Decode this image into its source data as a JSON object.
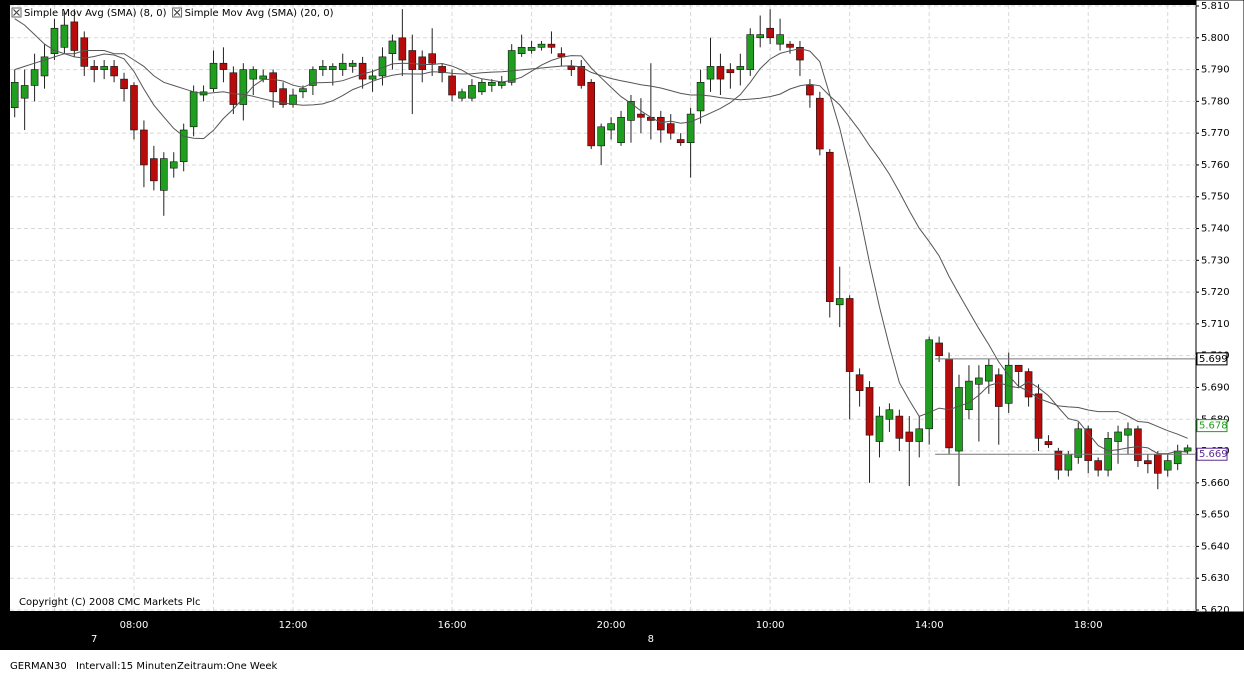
{
  "chart_data": {
    "type": "candlestick",
    "copyright": "Copyright (C) 2008 CMC Markets Plc",
    "footer": {
      "symbol": "GERMAN30",
      "interval": "Intervall:15 Minuten",
      "period": "Zeitraum:One Week"
    },
    "categories": [
      null,
      null,
      null,
      null,
      null,
      null,
      null,
      null,
      null,
      null,
      null,
      null,
      "08:00",
      null,
      null,
      null,
      null,
      null,
      null,
      null,
      null,
      null,
      null,
      null,
      null,
      null,
      null,
      null,
      "12:00",
      null,
      null,
      null,
      null,
      null,
      null,
      null,
      null,
      null,
      null,
      null,
      null,
      null,
      null,
      null,
      "16:00",
      null,
      null,
      null,
      null,
      null,
      null,
      null,
      null,
      null,
      null,
      null,
      null,
      null,
      null,
      null,
      "20:00",
      null,
      null,
      null,
      null,
      null,
      null,
      null,
      null,
      null,
      null,
      null,
      null,
      null,
      null,
      null,
      "10:00",
      null,
      null,
      null,
      null,
      null,
      null,
      null,
      null,
      null,
      null,
      null,
      null,
      null,
      null,
      null,
      "14:00",
      null,
      null,
      null,
      null,
      null,
      null,
      null,
      null,
      null,
      null,
      null,
      null,
      null,
      null,
      null,
      "18:00",
      null,
      null,
      null,
      null,
      null,
      null,
      null,
      null,
      null,
      null
    ],
    "day_categories": [
      null,
      null,
      null,
      null,
      null,
      null,
      null,
      null,
      "7",
      null,
      null,
      null,
      null,
      null,
      null,
      null,
      null,
      null,
      null,
      null,
      null,
      null,
      null,
      null,
      null,
      null,
      null,
      null,
      null,
      null,
      null,
      null,
      null,
      null,
      null,
      null,
      null,
      null,
      null,
      null,
      null,
      null,
      null,
      null,
      null,
      null,
      null,
      null,
      null,
      null,
      null,
      null,
      null,
      null,
      null,
      null,
      null,
      null,
      null,
      null,
      null,
      null,
      null,
      null,
      "8",
      null,
      null,
      null,
      null,
      null,
      null,
      null,
      null,
      null,
      null,
      null,
      null,
      null,
      null,
      null,
      null,
      null,
      null,
      null,
      null,
      null,
      null,
      null,
      null,
      null,
      null,
      null,
      null,
      null,
      null,
      null,
      null,
      null,
      null,
      null,
      null,
      null,
      null,
      null,
      null,
      null,
      null,
      null,
      null,
      null,
      null,
      null,
      null,
      null,
      null,
      null,
      null,
      null,
      null
    ],
    "open": [
      5778,
      5781,
      5785,
      5788,
      5795,
      5797,
      5805,
      5800,
      5791,
      5790,
      5791,
      5787,
      5785,
      5771,
      5762,
      5752,
      5759,
      5761,
      5772,
      5782,
      5784,
      5792,
      5789,
      5779,
      5787,
      5787,
      5789,
      5784,
      5779,
      5783,
      5785,
      5790,
      5790,
      5790,
      5791,
      5792,
      5787,
      5788,
      5795,
      5800,
      5796,
      5794,
      5795,
      5791,
      5788,
      5781,
      5781,
      5783,
      5785,
      5785,
      5786,
      5795,
      5796,
      5797,
      5798,
      5795,
      5791,
      5791,
      5786,
      5766,
      5771,
      5767,
      5774,
      5776,
      5775,
      5775,
      5773,
      5768,
      5767,
      5777,
      5787,
      5791,
      5790,
      5790,
      5790,
      5800,
      5803,
      5798,
      5798,
      5797,
      5785,
      5781,
      5764,
      5716,
      5718,
      5694,
      5690,
      5673,
      5680,
      5681,
      5676,
      5673,
      5677,
      5704,
      5699,
      5670,
      5683,
      5691,
      5692,
      5694,
      5685,
      5697,
      5695,
      5688,
      5673,
      5670,
      5664,
      5668,
      5677,
      5667,
      5664,
      5673,
      5675,
      5677,
      5667,
      5669,
      5664,
      5666,
      5670
    ],
    "high": [
      5790,
      5790,
      5795,
      5798,
      5806,
      5808,
      5809,
      5802,
      5793,
      5793,
      5793,
      5789,
      5786,
      5774,
      5766,
      5764,
      5764,
      5773,
      5785,
      5785,
      5796,
      5797,
      5791,
      5792,
      5791,
      5790,
      5790,
      5786,
      5784,
      5785,
      5791,
      5793,
      5792,
      5795,
      5793,
      5794,
      5790,
      5797,
      5801,
      5809,
      5801,
      5796,
      5803,
      5792,
      5790,
      5784,
      5787,
      5787,
      5787,
      5788,
      5798,
      5801,
      5799,
      5799,
      5802,
      5797,
      5793,
      5793,
      5787,
      5773,
      5775,
      5777,
      5782,
      5781,
      5792,
      5777,
      5776,
      5770,
      5778,
      5790,
      5800,
      5795,
      5792,
      5795,
      5803,
      5807,
      5809,
      5806,
      5799,
      5799,
      5787,
      5783,
      5765,
      5728,
      5719,
      5696,
      5692,
      5684,
      5685,
      5683,
      5681,
      5681,
      5706,
      5706,
      5701,
      5694,
      5697,
      5697,
      5699,
      5696,
      5701,
      5697,
      5696,
      5691,
      5675,
      5671,
      5670,
      5679,
      5678,
      5668,
      5676,
      5678,
      5679,
      5678,
      5669,
      5670,
      5669,
      5672,
      5672
    ],
    "low": [
      5775,
      5771,
      5780,
      5784,
      5793,
      5795,
      5794,
      5788,
      5786,
      5787,
      5786,
      5780,
      5768,
      5753,
      5752,
      5744,
      5756,
      5758,
      5769,
      5780,
      5783,
      5786,
      5776,
      5774,
      5782,
      5786,
      5778,
      5778,
      5778,
      5781,
      5782,
      5788,
      5785,
      5788,
      5789,
      5784,
      5783,
      5785,
      5790,
      5788,
      5776,
      5786,
      5788,
      5786,
      5780,
      5780,
      5780,
      5782,
      5783,
      5784,
      5785,
      5794,
      5795,
      5796,
      5795,
      5791,
      5788,
      5784,
      5765,
      5760,
      5768,
      5766,
      5767,
      5770,
      5768,
      5767,
      5768,
      5766,
      5756,
      5773,
      5783,
      5782,
      5784,
      5785,
      5788,
      5797,
      5798,
      5796,
      5795,
      5788,
      5778,
      5763,
      5712,
      5709,
      5680,
      5684,
      5660,
      5668,
      5676,
      5670,
      5659,
      5668,
      5672,
      5698,
      5669,
      5659,
      5680,
      5673,
      5688,
      5672,
      5682,
      5690,
      5684,
      5670,
      5671,
      5661,
      5662,
      5666,
      5663,
      5662,
      5662,
      5666,
      5669,
      5665,
      5663,
      5658,
      5662,
      5664,
      5669
    ],
    "close": [
      5786,
      5785,
      5790,
      5794,
      5803,
      5804,
      5796,
      5791,
      5790,
      5791,
      5788,
      5784,
      5771,
      5760,
      5755,
      5762,
      5761,
      5771,
      5783,
      5783,
      5792,
      5790,
      5779,
      5790,
      5790,
      5788,
      5783,
      5779,
      5782,
      5784,
      5790,
      5791,
      5791,
      5792,
      5792,
      5787,
      5788,
      5794,
      5799,
      5793,
      5790,
      5790,
      5792,
      5789,
      5782,
      5783,
      5785,
      5786,
      5786,
      5786,
      5796,
      5797,
      5797,
      5798,
      5797,
      5794,
      5790,
      5785,
      5766,
      5772,
      5773,
      5775,
      5780,
      5775,
      5774,
      5771,
      5770,
      5767,
      5776,
      5786,
      5791,
      5787,
      5789,
      5791,
      5801,
      5801,
      5800,
      5801,
      5797,
      5793,
      5782,
      5765,
      5717,
      5718,
      5695,
      5689,
      5675,
      5681,
      5683,
      5674,
      5673,
      5677,
      5705,
      5700,
      5671,
      5690,
      5692,
      5693,
      5697,
      5684,
      5697,
      5695,
      5687,
      5674,
      5672,
      5664,
      5669,
      5677,
      5667,
      5664,
      5674,
      5676,
      5677,
      5667,
      5666,
      5663,
      5667,
      5670,
      5671
    ],
    "up_color": "#1f9e1f",
    "down_color": "#b80c0c",
    "series": [
      {
        "name": "Simple Mov Avg (SMA) (8, 0)",
        "color": "#555555",
        "values": [
          5806,
          5804,
          5801,
          5798,
          5796,
          5795,
          5794,
          5793.6,
          5794.1,
          5794.9,
          5794.6,
          5793.4,
          5789.4,
          5783.9,
          5778.8,
          5775.1,
          5771.5,
          5769,
          5768.4,
          5768.3,
          5770.9,
          5774.6,
          5777.6,
          5781.1,
          5784.8,
          5786.9,
          5786.9,
          5786.4,
          5785.1,
          5784.4,
          5785.8,
          5785.9,
          5786,
          5786.5,
          5787.6,
          5788.6,
          5789.4,
          5790.6,
          5791.8,
          5792,
          5791.9,
          5791.6,
          5791.6,
          5791.9,
          5791.1,
          5789.8,
          5788,
          5787.1,
          5786.6,
          5786.1,
          5786.6,
          5787.6,
          5789.5,
          5791.4,
          5792.9,
          5793.9,
          5794.4,
          5794.3,
          5790.5,
          5787.4,
          5784.4,
          5781.5,
          5779.4,
          5777,
          5775,
          5773.3,
          5773.8,
          5773.1,
          5773.5,
          5774.9,
          5776.3,
          5777.8,
          5779.6,
          5782.1,
          5786,
          5790.3,
          5793.3,
          5795.1,
          5795.9,
          5796.6,
          5795.8,
          5792.5,
          5782,
          5771.6,
          5758.5,
          5744.5,
          5729.3,
          5715.3,
          5702.9,
          5691.5,
          5686,
          5680.9,
          5682.1,
          5683.5,
          5683,
          5684.1,
          5685.2,
          5687.6,
          5690.6,
          5691.5,
          5690.5,
          5689.9,
          5691.9,
          5689.9,
          5687.4,
          5683.7,
          5680.2,
          5679.4,
          5675.6,
          5671.7,
          5670.1,
          5670.4,
          5671,
          5671.4,
          5671,
          5669.2,
          5669.2,
          5670,
          5669.6
        ]
      },
      {
        "name": "Simple Mov Avg (SMA) (20, 0)",
        "color": "#555555",
        "values": [
          5790,
          5791,
          5792,
          5793,
          5794,
          5795,
          5795,
          5796,
          5796,
          5796,
          5795,
          5795,
          5793,
          5791,
          5788,
          5786,
          5785,
          5784,
          5783,
          5782.4,
          5782.7,
          5783,
          5782.4,
          5782.2,
          5781.6,
          5780.8,
          5780.1,
          5779.5,
          5779.1,
          5778.8,
          5778.9,
          5779.2,
          5780.2,
          5781.8,
          5783.7,
          5784.9,
          5786.3,
          5787.4,
          5788.2,
          5788.7,
          5788.6,
          5788.6,
          5789.3,
          5789.2,
          5788.8,
          5788.6,
          5788.7,
          5789,
          5789.2,
          5789.3,
          5789.6,
          5789.9,
          5790.2,
          5790.5,
          5790.8,
          5791.1,
          5791.2,
          5790.8,
          5789.1,
          5788.1,
          5787.2,
          5786.5,
          5785.9,
          5785.2,
          5784.8,
          5784.2,
          5783.4,
          5782.5,
          5782,
          5782,
          5781.7,
          5781.2,
          5780.8,
          5780.5,
          5780.7,
          5781,
          5781.5,
          5782.3,
          5783.9,
          5784.9,
          5785.4,
          5784.9,
          5781.7,
          5778.9,
          5774.9,
          5770.8,
          5766.1,
          5761.8,
          5757.1,
          5751.5,
          5745.6,
          5740.1,
          5735.9,
          5731.4,
          5724.9,
          5719.3,
          5713.9,
          5708.5,
          5703.5,
          5698,
          5693.8,
          5690.3,
          5688.8,
          5686.6,
          5685.4,
          5684.2,
          5683.9,
          5683.7,
          5682.9,
          5682.4,
          5682.4,
          5682.4,
          5681,
          5679.3,
          5679,
          5677.7,
          5676.4,
          5675.3,
          5674
        ]
      }
    ],
    "ylim": [
      5620,
      5810
    ],
    "yticks": [
      {
        "value": 5620,
        "label": "5.620"
      },
      {
        "value": 5630,
        "label": "5.630"
      },
      {
        "value": 5640,
        "label": "5.640"
      },
      {
        "value": 5650,
        "label": "5.650"
      },
      {
        "value": 5660,
        "label": "5.660"
      },
      {
        "value": 5670,
        "label": "5.670"
      },
      {
        "value": 5680,
        "label": "5.680"
      },
      {
        "value": 5690,
        "label": "5.690"
      },
      {
        "value": 5700,
        "label": "5.700"
      },
      {
        "value": 5710,
        "label": "5.710"
      },
      {
        "value": 5720,
        "label": "5.720"
      },
      {
        "value": 5730,
        "label": "5.730"
      },
      {
        "value": 5740,
        "label": "5.740"
      },
      {
        "value": 5750,
        "label": "5.750"
      },
      {
        "value": 5760,
        "label": "5.760"
      },
      {
        "value": 5770,
        "label": "5.770"
      },
      {
        "value": 5780,
        "label": "5.780"
      },
      {
        "value": 5790,
        "label": "5.790"
      },
      {
        "value": 5800,
        "label": "5.800"
      },
      {
        "value": 5810,
        "label": "5.810"
      }
    ],
    "grid": true,
    "price_markers": [
      {
        "value": 5699,
        "label": "5.699",
        "color": "#000000",
        "line": true
      },
      {
        "value": 5678,
        "label": "5.678",
        "color": "#1f9e1f",
        "line": false
      },
      {
        "value": 5669,
        "label": "5.669",
        "color": "#5a2d91",
        "line": true
      }
    ]
  }
}
